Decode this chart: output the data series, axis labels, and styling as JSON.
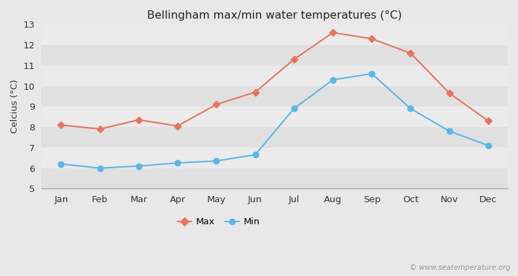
{
  "title": "Bellingham max/min water temperatures (°C)",
  "months": [
    "Jan",
    "Feb",
    "Mar",
    "Apr",
    "May",
    "Jun",
    "Jul",
    "Aug",
    "Sep",
    "Oct",
    "Nov",
    "Dec"
  ],
  "max_values": [
    8.1,
    7.9,
    8.35,
    8.05,
    9.1,
    9.7,
    11.3,
    12.6,
    12.3,
    11.6,
    9.65,
    8.3
  ],
  "min_values": [
    6.2,
    6.0,
    6.1,
    6.25,
    6.35,
    6.65,
    8.9,
    10.3,
    10.6,
    8.9,
    7.8,
    7.1
  ],
  "max_color": "#e8735a",
  "min_color": "#5ab8e8",
  "ylim": [
    5,
    13
  ],
  "yticks": [
    5,
    6,
    7,
    8,
    9,
    10,
    11,
    12,
    13
  ],
  "ylabel": "Celcius (°C)",
  "fig_bg_color": "#e8e8e8",
  "band_light": "#ebebeb",
  "band_dark": "#e0e0e0",
  "watermark": "© www.seatemperature.org",
  "legend_max": "Max",
  "legend_min": "Min"
}
